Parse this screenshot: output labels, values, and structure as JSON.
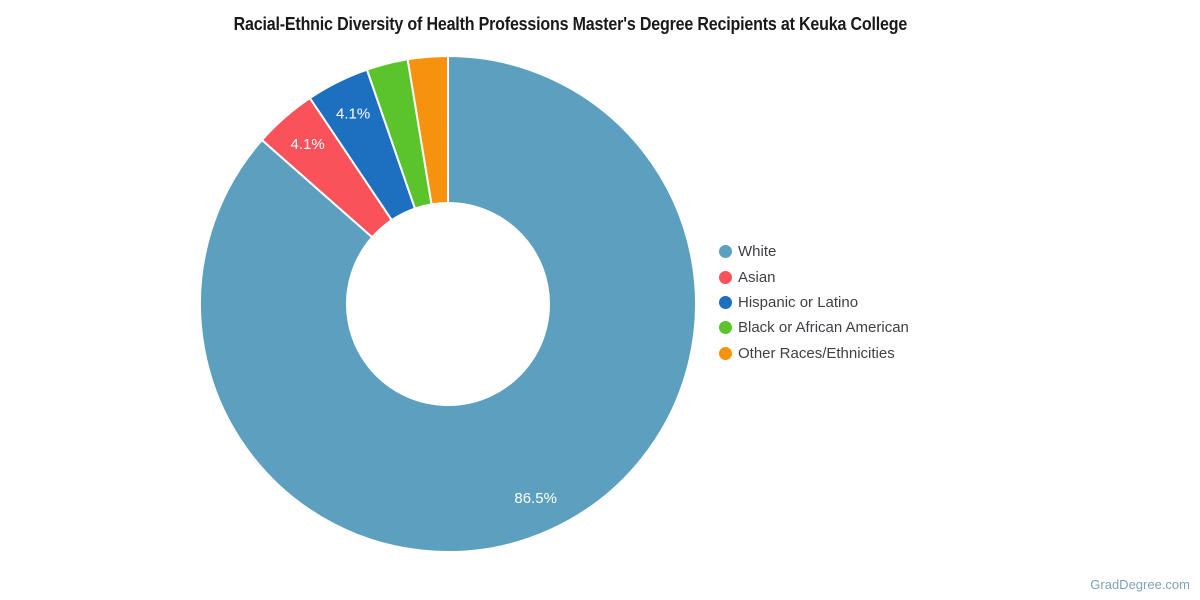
{
  "watermark": "GradDegree.com",
  "chart_data": {
    "type": "pie",
    "subtype": "donut",
    "title": "Racial-Ethnic Diversity of Health Professions Master's Degree Recipients at Keuka College",
    "legend_position": "right",
    "start_angle_deg": 0,
    "direction": "clockwise",
    "slice_border_color": "#ffffff",
    "label_color": "#ffffff",
    "series": [
      {
        "name": "White",
        "value": 86.5,
        "label": "86.5%",
        "color": "#5C9FBE"
      },
      {
        "name": "Asian",
        "value": 4.1,
        "label": "4.1%",
        "color": "#F9525A"
      },
      {
        "name": "Hispanic or Latino",
        "value": 4.1,
        "label": "4.1%",
        "color": "#1D6FC0"
      },
      {
        "name": "Black or African American",
        "value": 2.7,
        "label": "",
        "color": "#5BC42A"
      },
      {
        "name": "Other Races/Ethnicities",
        "value": 2.6,
        "label": "",
        "color": "#F6920D"
      }
    ]
  }
}
